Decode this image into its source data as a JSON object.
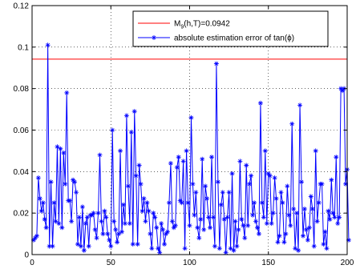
{
  "chart_data": {
    "type": "line",
    "xlim": [
      0,
      200
    ],
    "ylim": [
      0,
      0.12
    ],
    "xticks": [
      0,
      50,
      100,
      150,
      200
    ],
    "yticks": [
      0,
      0.02,
      0.04,
      0.06,
      0.08,
      0.1,
      0.12
    ],
    "xtick_labels": [
      "0",
      "50",
      "100",
      "150",
      "200"
    ],
    "ytick_labels": [
      "0",
      "0.02",
      "0.04",
      "0.06",
      "0.08",
      "0.1",
      "0.12"
    ],
    "grid": true,
    "legend_position": "top-right",
    "series": [
      {
        "name": "M9(h,T)=0.0942",
        "legend_base": "M",
        "legend_sub": "9",
        "legend_rest": "(h,T)=0.0942",
        "color": "#ff0000",
        "marker": "none",
        "x": [
          0,
          200
        ],
        "y": [
          0.0942,
          0.0942
        ]
      },
      {
        "name": "absolute estimation error of tan(ϕ)",
        "legend_label": "absolute estimation error of tan(ϕ)",
        "color": "#0000ff",
        "marker": "asterisk",
        "x_start": 1,
        "y": [
          0.007,
          0.008,
          0.009,
          0.037,
          0.027,
          0.021,
          0.025,
          0.017,
          0.013,
          0.101,
          0.004,
          0.035,
          0.004,
          0.025,
          0.016,
          0.052,
          0.015,
          0.051,
          0.013,
          0.049,
          0.034,
          0.078,
          0.026,
          0.026,
          0.016,
          0.036,
          0.035,
          0.03,
          0.005,
          0.018,
          0.004,
          0.023,
          0.002,
          0.015,
          0.018,
          0.004,
          0.019,
          0.019,
          0.02,
          0.012,
          0.008,
          0.02,
          0.048,
          0.016,
          0.01,
          0.021,
          0.018,
          0.01,
          0.007,
          0.004,
          0.06,
          0.016,
          0.012,
          0.006,
          0.01,
          0.05,
          0.011,
          0.024,
          0.015,
          0.067,
          0.033,
          0.015,
          0.059,
          0.005,
          0.069,
          0.038,
          0.005,
          0.043,
          0.034,
          0.021,
          0.027,
          0.016,
          0.025,
          0.021,
          0.01,
          0.003,
          0.02,
          0.018,
          0.013,
          0.003,
          0.001,
          0.015,
          0.012,
          0.005,
          0.01,
          0.011,
          0.025,
          0.044,
          0.016,
          0.013,
          0.014,
          0.042,
          0.047,
          0.026,
          0.025,
          0.045,
          0.003,
          0.05,
          0.025,
          0.014,
          0.066,
          0.034,
          0.019,
          0.03,
          0.013,
          0.008,
          0.017,
          0.046,
          0.012,
          0.033,
          0.027,
          0.018,
          0.013,
          0.047,
          0.018,
          0.004,
          0.092,
          0.035,
          0.003,
          0.024,
          0.03,
          0.017,
          0.001,
          0.018,
          0.03,
          0.003,
          0.039,
          0.002,
          0.016,
          0.004,
          0.012,
          0.045,
          0.017,
          0.014,
          0.008,
          0.043,
          0.014,
          0.034,
          0.038,
          0.019,
          0.025,
          0.016,
          0.013,
          0.01,
          0.073,
          0.025,
          0.018,
          0.05,
          0.015,
          0.039,
          0.038,
          0.015,
          0.02,
          0.037,
          0.027,
          0.006,
          0.009,
          0.03,
          0.025,
          0.006,
          0.01,
          0.033,
          0.019,
          0.014,
          0.063,
          0.022,
          0.003,
          0.02,
          0.002,
          0.072,
          0.035,
          0.009,
          0.022,
          0.012,
          0.007,
          0.013,
          0.028,
          0.022,
          0.004,
          0.05,
          0.016,
          0.025,
          0.034,
          0.034,
          0.005,
          0.011,
          0.003,
          0.021,
          0.017,
          0.036,
          0.02,
          0.018,
          0.047,
          0.015,
          0.018,
          0.08,
          0.079,
          0.08,
          0.034,
          0.041,
          0.007
        ]
      }
    ]
  }
}
